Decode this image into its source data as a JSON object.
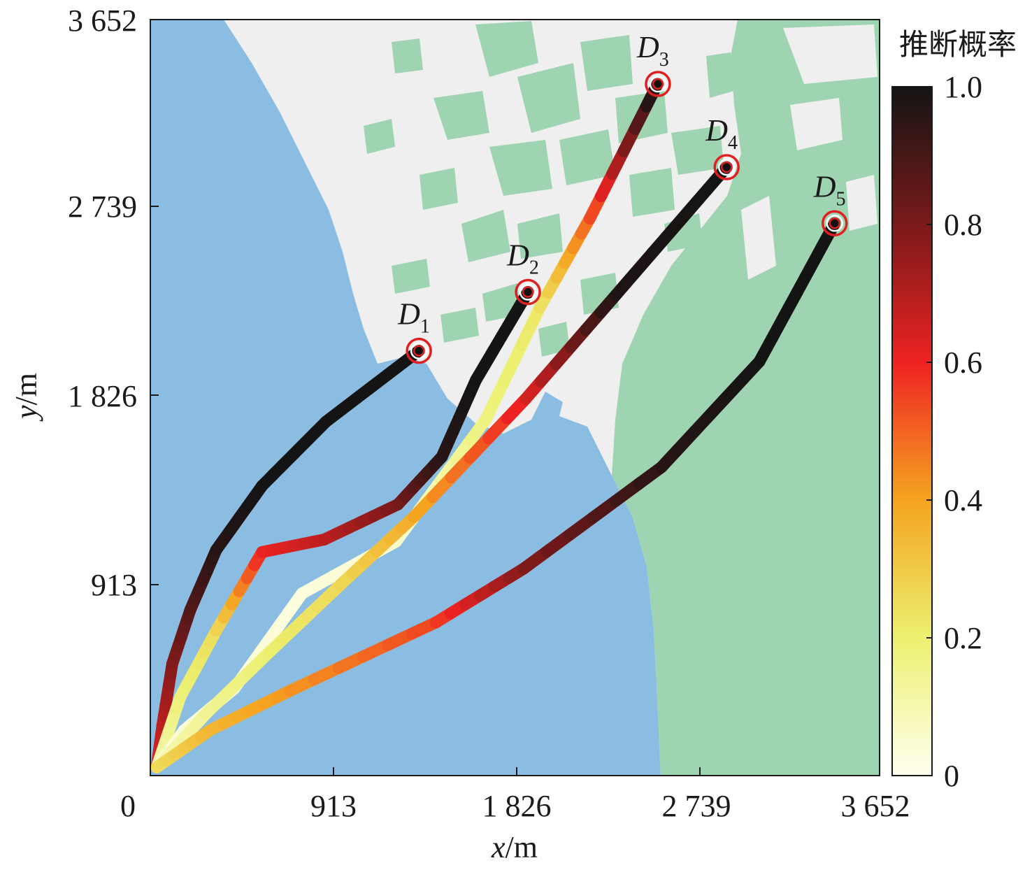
{
  "map": {
    "x_axis": {
      "label_var": "x",
      "label_unit": "/m",
      "ticks": [
        "0",
        "913",
        "1 826",
        "2 739",
        "3 652"
      ],
      "range": [
        0,
        3652
      ]
    },
    "y_axis": {
      "label_var": "y",
      "label_unit": "/m",
      "ticks": [
        "913",
        "1 826",
        "2 739",
        "3 652"
      ],
      "range": [
        0,
        3652
      ]
    },
    "colors": {
      "water": "#8bbde3",
      "land": "#efefef",
      "vegetation": "#9fd4b2",
      "marker": "#e02020"
    },
    "colorbar": {
      "title": "推断概率",
      "ticks": [
        "0",
        "0.2",
        "0.4",
        "0.6",
        "0.8",
        "1.0"
      ],
      "range": [
        0,
        1
      ],
      "stops": [
        "#fffff0",
        "#ecf070",
        "#f5a420",
        "#ee2222",
        "#7a1a1a",
        "#141414"
      ]
    },
    "destinations": [
      {
        "letter": "D",
        "sub": "1",
        "x": 1345,
        "y": 2052
      },
      {
        "letter": "D",
        "sub": "2",
        "x": 1891,
        "y": 2336
      },
      {
        "letter": "D",
        "sub": "3",
        "x": 2542,
        "y": 3341
      },
      {
        "letter": "D",
        "sub": "4",
        "x": 2886,
        "y": 2939
      },
      {
        "letter": "D",
        "sub": "5",
        "x": 3427,
        "y": 2668
      }
    ],
    "trajectories": [
      {
        "name": "trajectory to D1",
        "points": [
          [
            32,
            40
          ],
          [
            60,
            240
          ],
          [
            110,
            540
          ],
          [
            200,
            800
          ],
          [
            330,
            1090
          ],
          [
            560,
            1400
          ],
          [
            880,
            1710
          ],
          [
            1345,
            2052
          ]
        ],
        "probs": [
          0.62,
          0.68,
          0.78,
          0.87,
          0.96,
          1.0,
          1.0,
          1.0
        ]
      },
      {
        "name": "trajectory to D2",
        "points": [
          [
            32,
            40
          ],
          [
            150,
            380
          ],
          [
            330,
            700
          ],
          [
            560,
            1080
          ],
          [
            870,
            1140
          ],
          [
            1240,
            1310
          ],
          [
            1460,
            1540
          ],
          [
            1630,
            1910
          ],
          [
            1891,
            2336
          ]
        ],
        "probs": [
          0.1,
          0.18,
          0.25,
          0.6,
          0.68,
          0.8,
          0.96,
          1.0,
          1.0
        ]
      },
      {
        "name": "trajectory to D3",
        "points": [
          [
            32,
            40
          ],
          [
            170,
            220
          ],
          [
            420,
            420
          ],
          [
            760,
            880
          ],
          [
            1230,
            1130
          ],
          [
            1680,
            1720
          ],
          [
            1950,
            2260
          ],
          [
            2200,
            2690
          ],
          [
            2540,
            3341
          ]
        ],
        "probs": [
          0.04,
          0.04,
          0.04,
          0.03,
          0.05,
          0.18,
          0.22,
          0.5,
          1.0
        ]
      },
      {
        "name": "trajectory to D4",
        "points": [
          [
            32,
            40
          ],
          [
            280,
            300
          ],
          [
            600,
            600
          ],
          [
            950,
            920
          ],
          [
            1320,
            1250
          ],
          [
            1880,
            1820
          ],
          [
            2330,
            2320
          ],
          [
            2886,
            2939
          ]
        ],
        "probs": [
          0.1,
          0.14,
          0.2,
          0.26,
          0.38,
          0.62,
          0.98,
          1.0
        ]
      },
      {
        "name": "trajectory to D5",
        "points": [
          [
            32,
            40
          ],
          [
            300,
            220
          ],
          [
            700,
            410
          ],
          [
            1430,
            740
          ],
          [
            1870,
            1000
          ],
          [
            2560,
            1490
          ],
          [
            3050,
            2000
          ],
          [
            3427,
            2668
          ]
        ],
        "probs": [
          0.25,
          0.35,
          0.42,
          0.55,
          0.78,
          0.96,
          1.0,
          1.0
        ]
      }
    ]
  }
}
